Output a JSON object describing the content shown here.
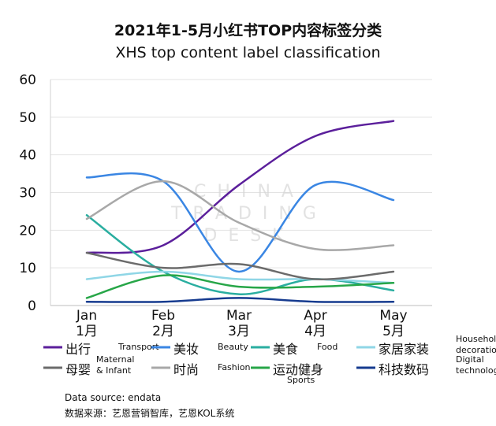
{
  "title": "2021年1-5月小红书TOP内容标签分类",
  "subtitle": "XHS top content label classification",
  "watermark": [
    "CHINA",
    "TRADING",
    "DESK"
  ],
  "chart_data": {
    "type": "line",
    "categories_en": [
      "Jan",
      "Feb",
      "Mar",
      "Apr",
      "May"
    ],
    "categories_cn": [
      "1月",
      "2月",
      "3月",
      "4月",
      "5月"
    ],
    "ylim": [
      0,
      60
    ],
    "yticks": [
      0,
      10,
      20,
      30,
      40,
      50,
      60
    ],
    "grid": true,
    "legend_position": "bottom",
    "series": [
      {
        "name_cn": "出行",
        "name_en": "Transport",
        "color": "#5b1f9b",
        "values": [
          14,
          16,
          32,
          45,
          49
        ]
      },
      {
        "name_cn": "美妆",
        "name_en": "Beauty",
        "color": "#3a86e3",
        "values": [
          34,
          33,
          9,
          32,
          28
        ]
      },
      {
        "name_cn": "美食",
        "name_en": "Food",
        "color": "#2aaea0",
        "values": [
          24,
          9,
          3,
          7,
          4
        ]
      },
      {
        "name_cn": "家居家装",
        "name_en": "Household decoration",
        "color": "#8fd6e6",
        "values": [
          7,
          9,
          7,
          7,
          6
        ]
      },
      {
        "name_cn": "母婴",
        "name_en": "Maternal & Infant",
        "color": "#6b6b6b",
        "values": [
          14,
          10,
          11,
          7,
          9
        ]
      },
      {
        "name_cn": "时尚",
        "name_en": "Fashion",
        "color": "#a8a8a8",
        "values": [
          23,
          33,
          22,
          15,
          16
        ]
      },
      {
        "name_cn": "运动健身",
        "name_en": "Sports",
        "color": "#27a648",
        "values": [
          2,
          8,
          5,
          5,
          6
        ]
      },
      {
        "name_cn": "科技数码",
        "name_en": "Digital technology",
        "color": "#163b8f",
        "values": [
          1,
          1,
          2,
          1,
          1
        ]
      }
    ]
  },
  "legend_en_lines": [
    [
      "Transport"
    ],
    [
      "Beauty"
    ],
    [
      "Food"
    ],
    [
      "Household",
      "decoration"
    ],
    [
      "Maternal",
      "& Infant"
    ],
    [
      "Fashion"
    ],
    [
      "Sports"
    ],
    [
      "Digital",
      "technology"
    ]
  ],
  "footer": {
    "source_en": "Data source: endata",
    "source_cn": "数据来源：艺恩营销智库，艺恩KOL系统"
  }
}
